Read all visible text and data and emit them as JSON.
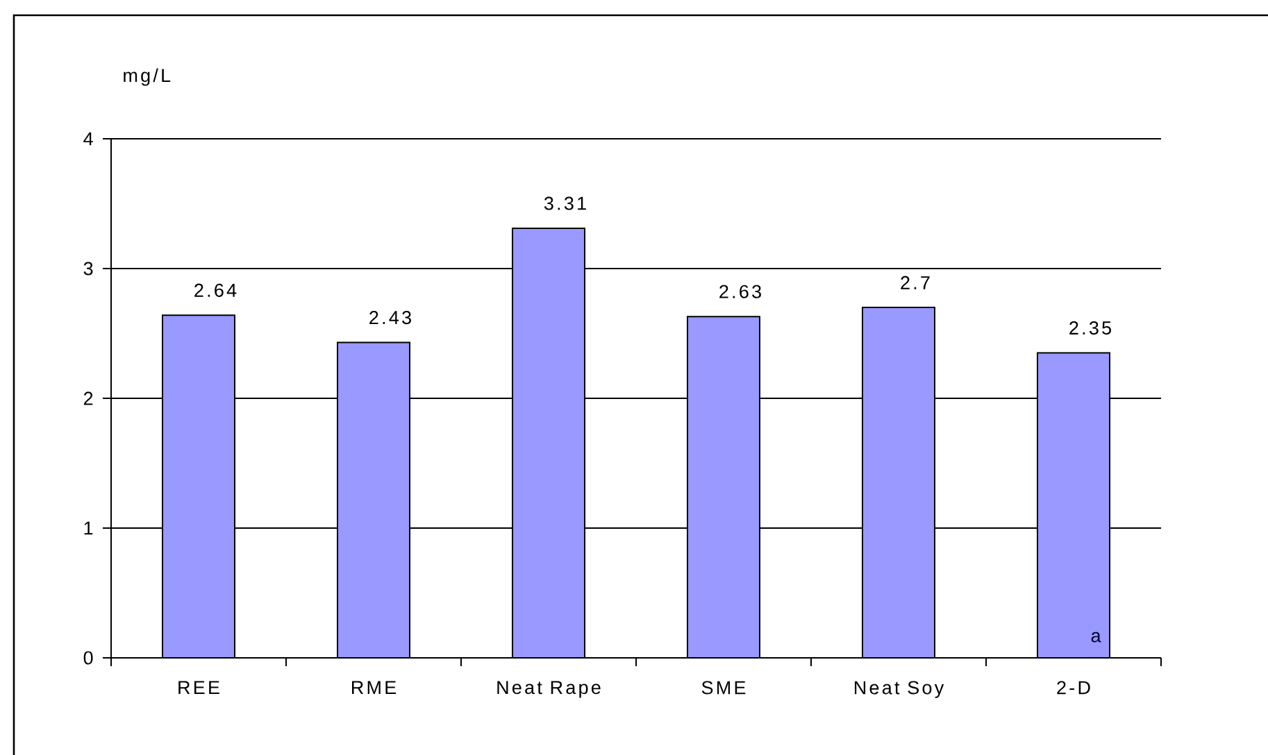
{
  "chart_data": {
    "type": "bar",
    "ylabel": "mg/L",
    "categories": [
      "REE",
      "RME",
      "Neat Rape",
      "SME",
      "Neat Soy",
      "2-D"
    ],
    "values": [
      2.64,
      2.43,
      3.31,
      2.63,
      2.7,
      2.35
    ],
    "color": "#9999ff",
    "ylim": [
      0,
      4
    ],
    "yticks": [
      0,
      1,
      2,
      3,
      4
    ],
    "grid": "y",
    "data_labels": true,
    "annotations": [
      "a"
    ]
  }
}
